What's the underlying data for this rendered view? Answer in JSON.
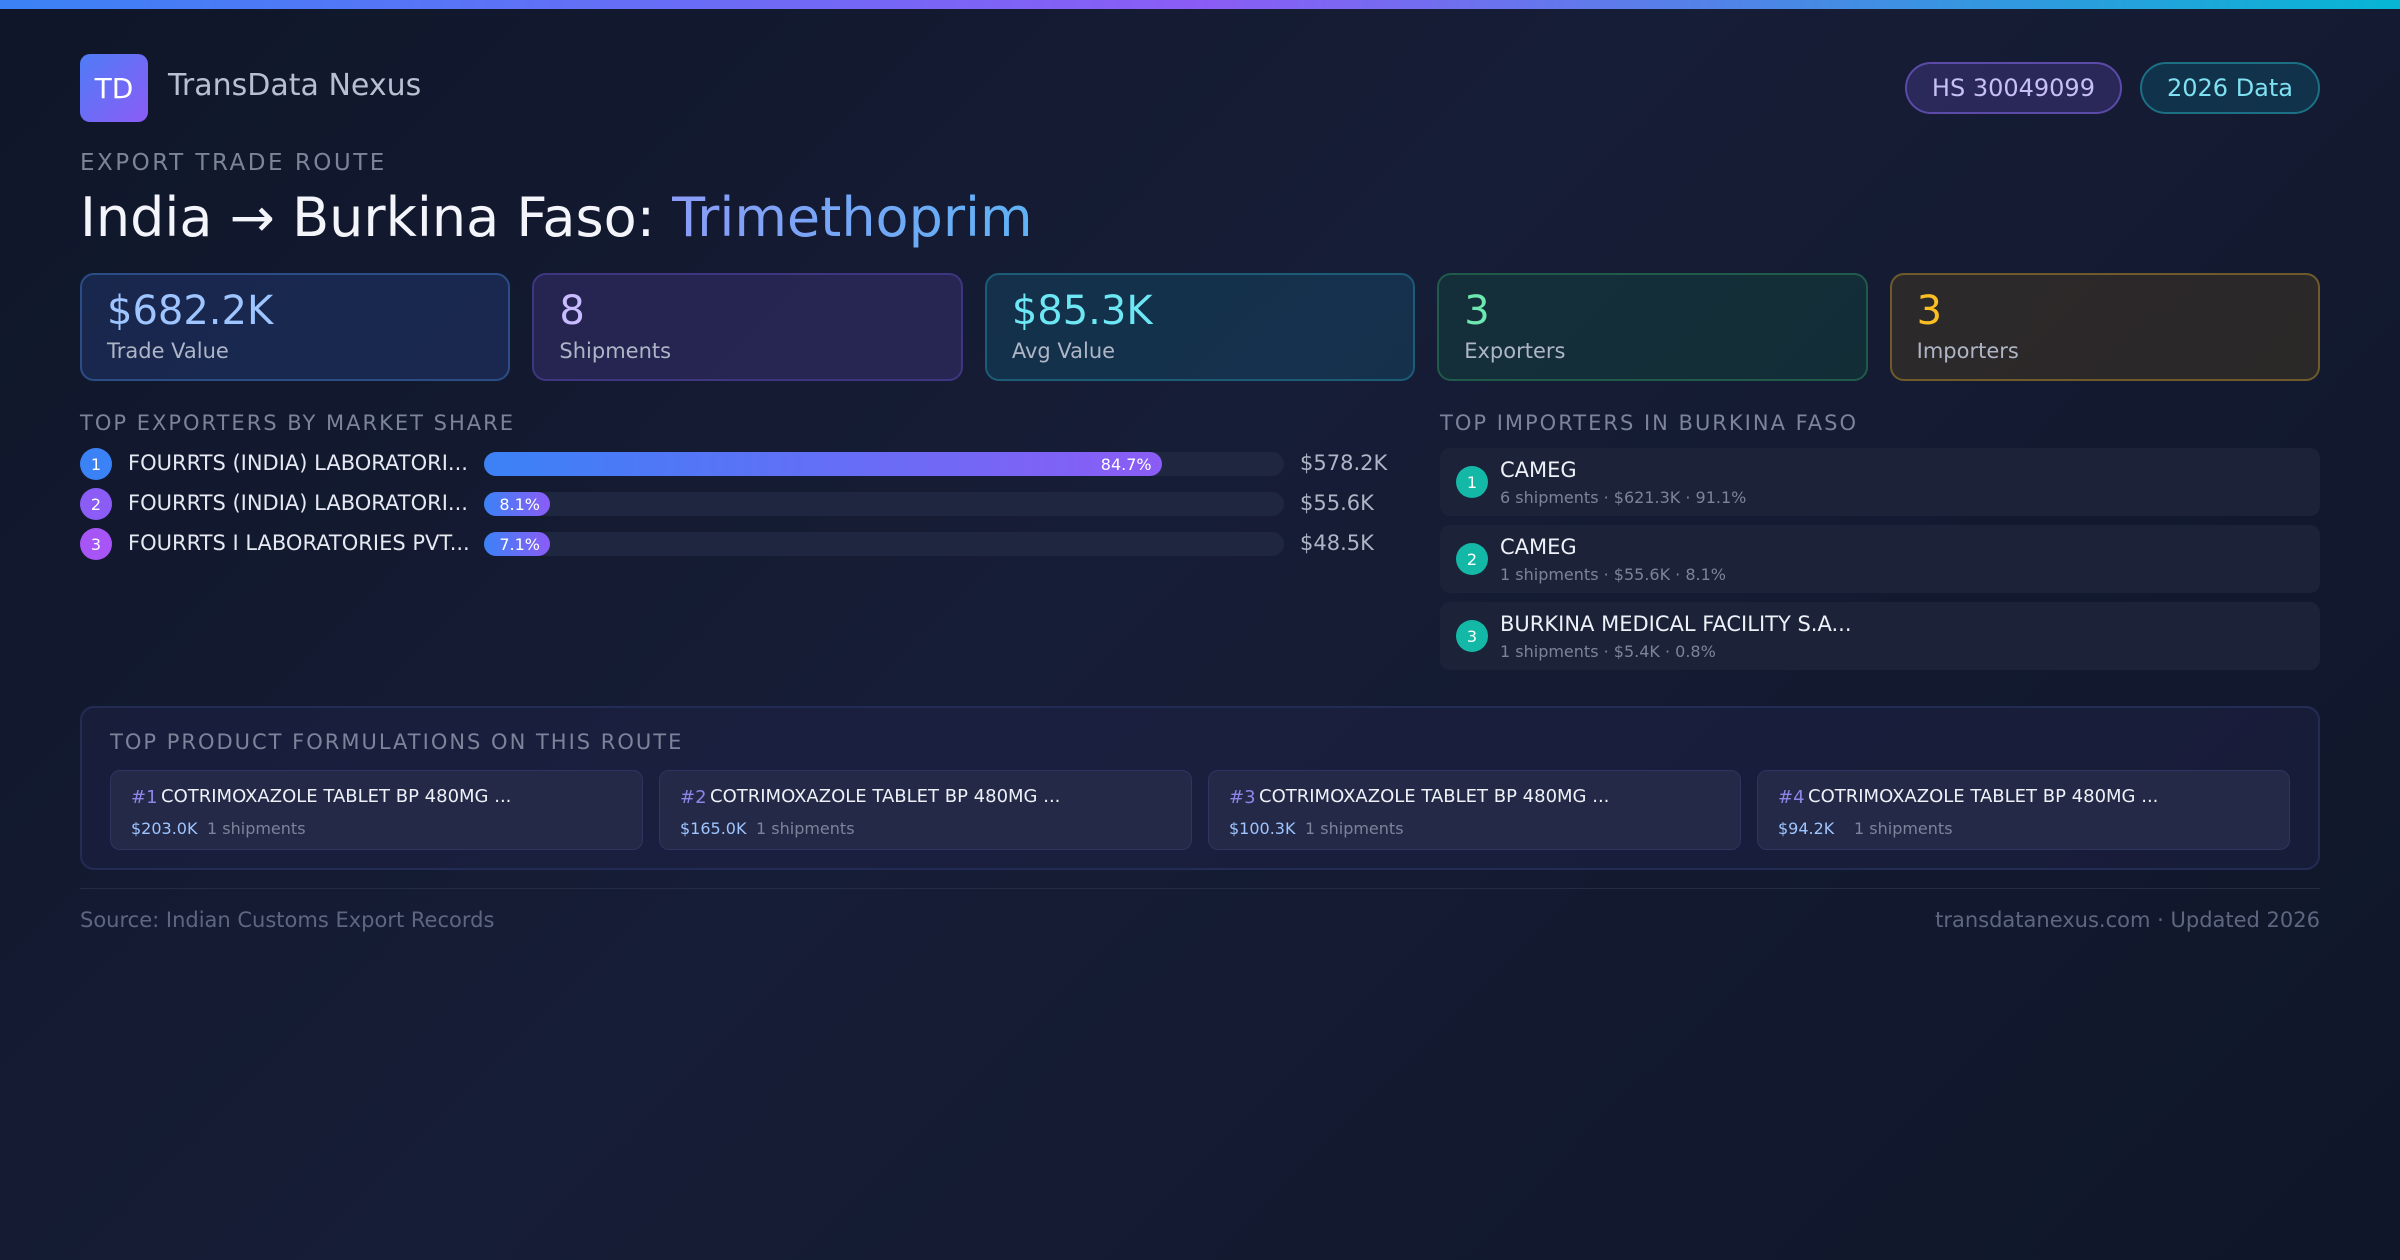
{
  "brand": {
    "logo_text": "TD",
    "name": "TransData Nexus"
  },
  "badges": {
    "hs_code": "HS 30049099",
    "data_year": "2026 Data"
  },
  "route": {
    "eyebrow": "EXPORT TRADE ROUTE",
    "title_prefix": "India → Burkina Faso:",
    "product": "Trimethoprim"
  },
  "stats": [
    {
      "value": "$682.2K",
      "label": "Trade Value"
    },
    {
      "value": "8",
      "label": "Shipments"
    },
    {
      "value": "$85.3K",
      "label": "Avg Value"
    },
    {
      "value": "3",
      "label": "Exporters"
    },
    {
      "value": "3",
      "label": "Importers"
    }
  ],
  "exporters": {
    "title": "TOP EXPORTERS BY MARKET SHARE",
    "items": [
      {
        "rank": "1",
        "name": "FOURRTS (INDIA) LABORATORI...",
        "share_label": "84.7%",
        "share": 84.7,
        "value": "$578.2K"
      },
      {
        "rank": "2",
        "name": "FOURRTS (INDIA) LABORATORI...",
        "share_label": "8.1%",
        "share": 8.1,
        "value": "$55.6K"
      },
      {
        "rank": "3",
        "name": "FOURRTS I LABORATORIES PVT...",
        "share_label": "7.1%",
        "share": 7.1,
        "value": "$48.5K"
      }
    ]
  },
  "importers": {
    "title": "TOP IMPORTERS IN BURKINA FASO",
    "items": [
      {
        "rank": "1",
        "name": "CAMEG",
        "meta": "6 shipments · $621.3K · 91.1%"
      },
      {
        "rank": "2",
        "name": "CAMEG",
        "meta": "1 shipments · $55.6K · 8.1%"
      },
      {
        "rank": "3",
        "name": "BURKINA MEDICAL FACILITY S.A...",
        "meta": "1 shipments · $5.4K · 0.8%"
      }
    ]
  },
  "formulations": {
    "title": "TOP PRODUCT FORMULATIONS ON THIS ROUTE",
    "items": [
      {
        "rank": "#1",
        "name": "COTRIMOXAZOLE TABLET BP 480MG ...",
        "value": "$203.0K",
        "shipments": "1 shipments"
      },
      {
        "rank": "#2",
        "name": "COTRIMOXAZOLE TABLET BP 480MG ...",
        "value": "$165.0K",
        "shipments": "1 shipments"
      },
      {
        "rank": "#3",
        "name": "COTRIMOXAZOLE TABLET BP 480MG ...",
        "value": "$100.3K",
        "shipments": "1 shipments"
      },
      {
        "rank": "#4",
        "name": "COTRIMOXAZOLE TABLET BP 480MG ...",
        "value": "$94.2K",
        "shipments": "1 shipments"
      }
    ]
  },
  "footer": {
    "source": "Source: Indian Customs Export Records",
    "site": "transdatanexus.com · Updated 2026"
  },
  "colors": {
    "accent_blue": "#3b82f6",
    "accent_purple": "#8b5cf6",
    "accent_teal": "#14b8a6",
    "rank_colors": [
      "#3b82f6",
      "#8b5cf6",
      "#a855f7"
    ]
  }
}
